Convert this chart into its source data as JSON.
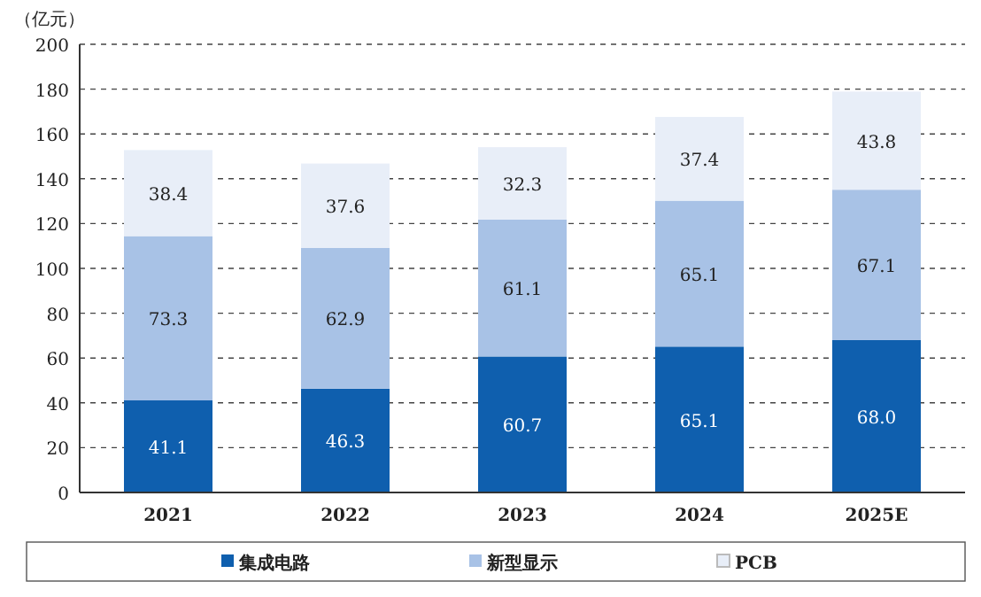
{
  "chart_data": {
    "type": "bar",
    "stacked": true,
    "ylabel": "（亿元）",
    "categories": [
      "2021",
      "2022",
      "2023",
      "2024",
      "2025E"
    ],
    "series": [
      {
        "name": "集成电路",
        "color": "#0f5fae",
        "values": [
          41.1,
          46.3,
          60.7,
          65.1,
          68.0
        ],
        "value_labels": [
          "41.1",
          "46.3",
          "60.7",
          "65.1",
          "68.0"
        ]
      },
      {
        "name": "新型显示",
        "color": "#a8c2e6",
        "values": [
          73.3,
          62.9,
          61.1,
          65.1,
          67.1
        ],
        "value_labels": [
          "73.3",
          "62.9",
          "61.1",
          "65.1",
          "67.1"
        ]
      },
      {
        "name": "PCB",
        "color": "#e8eef8",
        "values": [
          38.4,
          37.6,
          32.3,
          37.4,
          43.8
        ],
        "value_labels": [
          "38.4",
          "37.6",
          "32.3",
          "37.4",
          "43.8"
        ]
      }
    ],
    "ylim": [
      0,
      200
    ],
    "yticks": [
      0,
      20,
      40,
      60,
      80,
      100,
      120,
      140,
      160,
      180,
      200
    ],
    "grid": "y",
    "legend": "bottom"
  }
}
